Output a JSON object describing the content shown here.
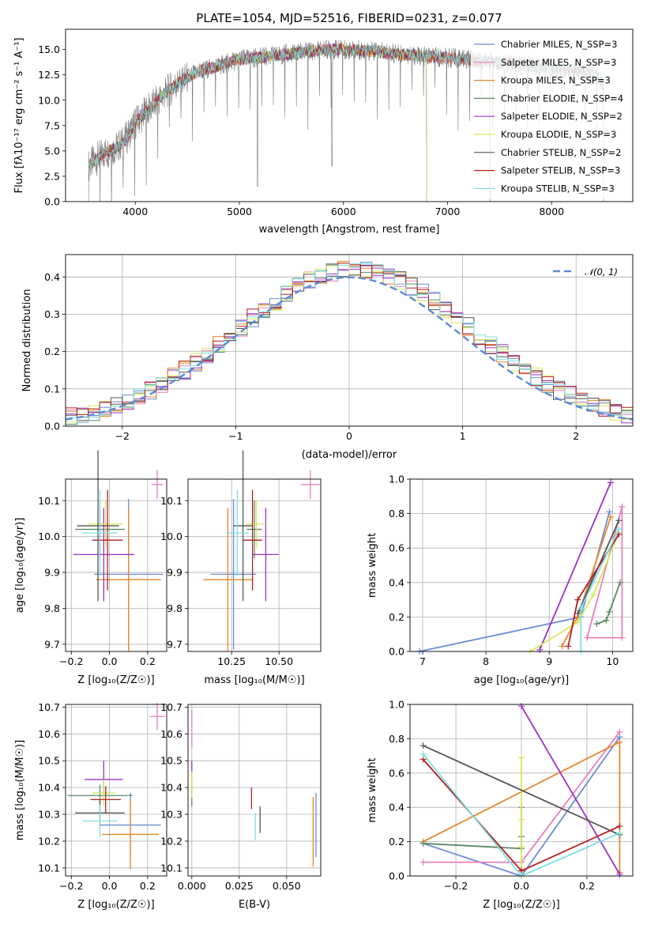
{
  "chart_data": [
    {
      "type": "line",
      "panel": "spectrum",
      "title": "PLATE=1054, MJD=52516, FIBERID=0231, z=0.077",
      "xlabel": "wavelength [Angstrom, rest frame]",
      "ylabel": "Flux [fλ10⁻¹⁷ erg cm⁻² s⁻¹ A⁻¹]",
      "xlim": [
        3330,
        8780
      ],
      "ylim": [
        0,
        17
      ],
      "xticks": [
        "4000",
        "5000",
        "6000",
        "7000",
        "8000"
      ],
      "yticks": [
        "0.0",
        "2.5",
        "5.0",
        "7.5",
        "10.0",
        "12.5",
        "15.0"
      ],
      "grid": false,
      "legend_position": "right",
      "data_trace": {
        "x": [
          3550,
          3700,
          3800,
          3900,
          4000,
          4100,
          4200,
          4300,
          4400,
          4500,
          4600,
          4800,
          5000,
          5200,
          5400,
          5600,
          5800,
          6000,
          6200,
          6400,
          6600,
          6800,
          7000,
          7200,
          7400,
          7600,
          7800,
          8000,
          8200,
          8400,
          8500
        ],
        "y": [
          3.5,
          4.8,
          5.2,
          6.0,
          7.8,
          8.8,
          9.8,
          10.8,
          11.6,
          12.2,
          12.8,
          13.4,
          14.0,
          14.2,
          14.5,
          14.7,
          15.0,
          15.0,
          14.9,
          14.7,
          14.5,
          14.3,
          14.2,
          14.0,
          13.8,
          13.6,
          13.4,
          13.2,
          13.0,
          12.6,
          11.6
        ]
      },
      "series": [
        {
          "name": "Chabrier MILES, N_SSP=3",
          "color": "#6b8cd8",
          "xmax": 7410
        },
        {
          "name": "Salpeter MILES, N_SSP=3",
          "color": "#e87fbb",
          "xmax": 7410
        },
        {
          "name": "Kroupa MILES, N_SSP=3",
          "color": "#e8862a",
          "xmax": 7410
        },
        {
          "name": "Chabrier ELODIE, N_SSP=4",
          "color": "#5a8a6a",
          "xmax": 6800
        },
        {
          "name": "Salpeter ELODIE, N_SSP=2",
          "color": "#9b30c8",
          "xmax": 6800
        },
        {
          "name": "Kroupa ELODIE, N_SSP=3",
          "color": "#d4e85a",
          "xmax": 6800
        },
        {
          "name": "Chabrier STELIB, N_SSP=2",
          "color": "#555555",
          "xmax": 8500
        },
        {
          "name": "Salpeter STELIB, N_SSP=3",
          "color": "#b22020",
          "xmax": 8500
        },
        {
          "name": "Kroupa STELIB, N_SSP=3",
          "color": "#7fe0e0",
          "xmax": 8500
        }
      ]
    },
    {
      "type": "histogram",
      "panel": "residuals",
      "xlabel": "(data-model)/error",
      "ylabel": "Normed distribution",
      "xlim": [
        -2.5,
        2.5
      ],
      "ylim": [
        0,
        0.46
      ],
      "xticks": [
        "−2",
        "−1",
        "0",
        "1",
        "2"
      ],
      "yticks": [
        "0.0",
        "0.1",
        "0.2",
        "0.3",
        "0.4"
      ],
      "grid": true,
      "legend": "𝒩(0, 1)",
      "legend_position": "top-right",
      "reference_curve": "gaussian N(0,1), dashed",
      "bins": [
        -2.5,
        2.5,
        50
      ]
    },
    {
      "type": "errorbar",
      "panel": "age-vs-Z",
      "xlabel": "Z [log₁₀(Z/Z☉)]",
      "ylabel": "age  [log₁₀(age/yr)]",
      "xlim": [
        -0.23,
        0.3
      ],
      "ylim": [
        9.68,
        10.16
      ],
      "xticks": [
        "−0.2",
        "0.0",
        "0.2"
      ],
      "yticks": [
        "9.7",
        "9.8",
        "9.9",
        "10.0",
        "10.1"
      ],
      "grid": true,
      "points": [
        {
          "x": 0.1,
          "xerr": 0.18,
          "y": 9.895,
          "yerr": 0.21,
          "color": "#6b8cd8"
        },
        {
          "x": 0.25,
          "xerr": 0.03,
          "y": 10.145,
          "yerr": 0.04,
          "color": "#e87fbb"
        },
        {
          "x": 0.1,
          "xerr": 0.17,
          "y": 9.88,
          "yerr": 0.2,
          "color": "#e8862a"
        },
        {
          "x": -0.05,
          "xerr": 0.13,
          "y": 10.02,
          "yerr": 0.08,
          "color": "#5a8a6a"
        },
        {
          "x": -0.03,
          "xerr": 0.16,
          "y": 9.95,
          "yerr": 0.13,
          "color": "#9b30c8"
        },
        {
          "x": -0.02,
          "xerr": 0.09,
          "y": 10.035,
          "yerr": 0.065,
          "color": "#d4e85a"
        },
        {
          "x": -0.06,
          "xerr": 0.11,
          "y": 10.03,
          "yerr": 0.21,
          "color": "#555555"
        },
        {
          "x": -0.01,
          "xerr": 0.08,
          "y": 9.99,
          "yerr": 0.14,
          "color": "#b22020"
        },
        {
          "x": -0.05,
          "xerr": 0.09,
          "y": 10.01,
          "yerr": 0.12,
          "color": "#7fe0e0"
        }
      ]
    },
    {
      "type": "errorbar",
      "panel": "age-vs-mass",
      "xlabel": "mass [log₁₀(M/M☉)]",
      "ylabel": "",
      "xlim": [
        10.02,
        10.72
      ],
      "ylim": [
        9.68,
        10.16
      ],
      "xticks": [
        "10.25",
        "10.50"
      ],
      "yticks": [
        "9.7",
        "9.8",
        "9.9",
        "10.0",
        "10.1"
      ],
      "grid": true,
      "points": [
        {
          "x": 10.26,
          "xerr": 0.12,
          "y": 9.895,
          "yerr": 0.21,
          "color": "#6b8cd8"
        },
        {
          "x": 10.665,
          "xerr": 0.05,
          "y": 10.145,
          "yerr": 0.04,
          "color": "#e87fbb"
        },
        {
          "x": 10.23,
          "xerr": 0.13,
          "y": 9.88,
          "yerr": 0.2,
          "color": "#e8862a"
        },
        {
          "x": 10.37,
          "xerr": 0.04,
          "y": 10.02,
          "yerr": 0.08,
          "color": "#5a8a6a"
        },
        {
          "x": 10.43,
          "xerr": 0.07,
          "y": 9.95,
          "yerr": 0.13,
          "color": "#9b30c8"
        },
        {
          "x": 10.38,
          "xerr": 0.05,
          "y": 10.035,
          "yerr": 0.065,
          "color": "#d4e85a"
        },
        {
          "x": 10.31,
          "xerr": 0.05,
          "y": 10.03,
          "yerr": 0.21,
          "color": "#555555"
        },
        {
          "x": 10.36,
          "xerr": 0.05,
          "y": 9.99,
          "yerr": 0.14,
          "color": "#b22020"
        },
        {
          "x": 10.28,
          "xerr": 0.06,
          "y": 10.01,
          "yerr": 0.12,
          "color": "#7fe0e0"
        }
      ]
    },
    {
      "type": "line",
      "panel": "weight-vs-age",
      "xlabel": "age  [log₁₀(age/yr)]",
      "ylabel": "mass weight",
      "xlim": [
        6.8,
        10.32
      ],
      "ylim": [
        0,
        1
      ],
      "xticks": [
        "7",
        "8",
        "9",
        "10"
      ],
      "yticks": [
        "0.0",
        "0.2",
        "0.4",
        "0.6",
        "0.8",
        "1.0"
      ],
      "grid": true,
      "series": [
        {
          "color": "#6b8cd8",
          "points": [
            [
              6.95,
              0.0
            ],
            [
              9.5,
              0.2
            ],
            [
              9.95,
              0.81
            ]
          ]
        },
        {
          "color": "#e87fbb",
          "points": [
            [
              9.6,
              0.08
            ],
            [
              10.15,
              0.08
            ],
            [
              10.15,
              0.84
            ],
            [
              9.6,
              0.08
            ]
          ]
        },
        {
          "color": "#e8862a",
          "points": [
            [
              9.2,
              0.03
            ],
            [
              9.45,
              0.2
            ],
            [
              9.97,
              0.78
            ]
          ]
        },
        {
          "color": "#5a8a6a",
          "points": [
            [
              9.75,
              0.16
            ],
            [
              9.9,
              0.18
            ],
            [
              9.95,
              0.23
            ],
            [
              10.12,
              0.4
            ]
          ]
        },
        {
          "color": "#9b30c8",
          "points": [
            [
              8.85,
              0.01
            ],
            [
              9.97,
              0.98
            ]
          ]
        },
        {
          "color": "#d4e85a",
          "points": [
            [
              8.7,
              0.0
            ],
            [
              9.45,
              0.17
            ],
            [
              9.7,
              0.33
            ],
            [
              10.1,
              0.69
            ]
          ]
        },
        {
          "color": "#555555",
          "points": [
            [
              9.45,
              0.22
            ],
            [
              10.1,
              0.76
            ]
          ]
        },
        {
          "color": "#b22020",
          "points": [
            [
              9.3,
              0.03
            ],
            [
              9.45,
              0.3
            ],
            [
              10.1,
              0.68
            ]
          ]
        },
        {
          "color": "#7fe0e0",
          "points": [
            [
              9.5,
              0.0
            ],
            [
              9.5,
              0.25
            ],
            [
              10.1,
              0.71
            ]
          ]
        }
      ]
    },
    {
      "type": "errorbar",
      "panel": "mass-vs-Z",
      "xlabel": "Z [log₁₀(Z/Z☉)]",
      "ylabel": "mass [log₁₀(M/M☉)]",
      "xlim": [
        -0.23,
        0.3
      ],
      "ylim": [
        10.07,
        10.71
      ],
      "xticks": [
        "−0.2",
        "0.0",
        "0.2"
      ],
      "yticks": [
        "10.1",
        "10.2",
        "10.3",
        "10.4",
        "10.5",
        "10.6",
        "10.7"
      ],
      "grid": true,
      "points": [
        {
          "x": 0.11,
          "xerr": 0.16,
          "y": 10.26,
          "yerr": 0.12,
          "color": "#6b8cd8"
        },
        {
          "x": 0.25,
          "xerr": 0.04,
          "y": 10.665,
          "yerr": 0.05,
          "color": "#e87fbb"
        },
        {
          "x": 0.11,
          "xerr": 0.15,
          "y": 10.225,
          "yerr": 0.13,
          "color": "#e8862a"
        },
        {
          "x": -0.05,
          "xerr": 0.17,
          "y": 10.37,
          "yerr": 0.04,
          "color": "#5a8a6a"
        },
        {
          "x": -0.03,
          "xerr": 0.1,
          "y": 10.43,
          "yerr": 0.07,
          "color": "#9b30c8"
        },
        {
          "x": -0.03,
          "xerr": 0.06,
          "y": 10.38,
          "yerr": 0.05,
          "color": "#d4e85a"
        },
        {
          "x": -0.05,
          "xerr": 0.13,
          "y": 10.305,
          "yerr": 0.05,
          "color": "#555555"
        },
        {
          "x": -0.02,
          "xerr": 0.08,
          "y": 10.355,
          "yerr": 0.05,
          "color": "#b22020"
        },
        {
          "x": -0.05,
          "xerr": 0.09,
          "y": 10.275,
          "yerr": 0.06,
          "color": "#7fe0e0"
        }
      ]
    },
    {
      "type": "errorbar",
      "panel": "mass-vs-EBV",
      "xlabel": "E(B-V)",
      "ylabel": "",
      "xlim": [
        -0.002,
        0.068
      ],
      "ylim": [
        10.07,
        10.71
      ],
      "xticks": [
        "0.000",
        "0.025",
        "0.050"
      ],
      "yticks": [
        "10.1",
        "10.2",
        "10.3",
        "10.4",
        "10.5",
        "10.6",
        "10.7"
      ],
      "grid": true,
      "points": [
        {
          "x": 0.0655,
          "y": 10.26,
          "yerr": 0.12,
          "color": "#6b8cd8"
        },
        {
          "x": 0.0,
          "y": 10.62,
          "yerr": 0.07,
          "color": "#e87fbb"
        },
        {
          "x": 0.064,
          "y": 10.235,
          "yerr": 0.13,
          "color": "#e8862a"
        },
        {
          "x": 0.0,
          "y": 10.37,
          "yerr": 0.04,
          "color": "#5a8a6a"
        },
        {
          "x": 0.0,
          "y": 10.43,
          "yerr": 0.07,
          "color": "#9b30c8"
        },
        {
          "x": 0.0,
          "y": 10.41,
          "yerr": 0.05,
          "color": "#d4e85a"
        },
        {
          "x": 0.036,
          "y": 10.28,
          "yerr": 0.05,
          "color": "#555555"
        },
        {
          "x": 0.0315,
          "y": 10.36,
          "yerr": 0.04,
          "color": "#b22020"
        },
        {
          "x": 0.0335,
          "y": 10.255,
          "yerr": 0.05,
          "color": "#7fe0e0"
        }
      ]
    },
    {
      "type": "line",
      "panel": "weight-vs-Z",
      "xlabel": "Z [log₁₀(Z/Z☉)]",
      "ylabel": "mass weight",
      "xlim": [
        -0.34,
        0.34
      ],
      "ylim": [
        0,
        1
      ],
      "xticks": [
        "−0.2",
        "0.0",
        "0.2"
      ],
      "yticks": [
        "0.0",
        "0.2",
        "0.4",
        "0.6",
        "0.8",
        "1.0"
      ],
      "grid": true,
      "series": [
        {
          "color": "#6b8cd8",
          "points": [
            [
              -0.3,
              0.19
            ],
            [
              0.0,
              0.0
            ],
            [
              0.3,
              0.81
            ]
          ]
        },
        {
          "color": "#e87fbb",
          "points": [
            [
              -0.3,
              0.08
            ],
            [
              0.0,
              0.08
            ],
            [
              0.3,
              0.84
            ]
          ]
        },
        {
          "color": "#e8862a",
          "points": [
            [
              -0.3,
              0.2
            ],
            [
              0.3,
              0.78
            ],
            [
              0.3,
              0.02
            ]
          ]
        },
        {
          "color": "#5a8a6a",
          "points": [
            [
              -0.3,
              0.19
            ],
            [
              0.0,
              0.16
            ],
            [
              0.0,
              0.23
            ],
            [
              0.0,
              0.4
            ]
          ]
        },
        {
          "color": "#9b30c8",
          "points": [
            [
              0.0,
              0.99
            ],
            [
              0.3,
              0.01
            ]
          ]
        },
        {
          "color": "#d4e85a",
          "points": [
            [
              0.0,
              0.0
            ],
            [
              0.0,
              0.17
            ],
            [
              0.0,
              0.33
            ],
            [
              0.0,
              0.69
            ]
          ]
        },
        {
          "color": "#555555",
          "points": [
            [
              -0.3,
              0.76
            ],
            [
              0.3,
              0.24
            ]
          ]
        },
        {
          "color": "#b22020",
          "points": [
            [
              -0.3,
              0.68
            ],
            [
              0.0,
              0.03
            ],
            [
              0.3,
              0.29
            ]
          ]
        },
        {
          "color": "#7fe0e0",
          "points": [
            [
              -0.3,
              0.71
            ],
            [
              0.0,
              0.0
            ],
            [
              0.3,
              0.25
            ]
          ]
        }
      ]
    }
  ]
}
